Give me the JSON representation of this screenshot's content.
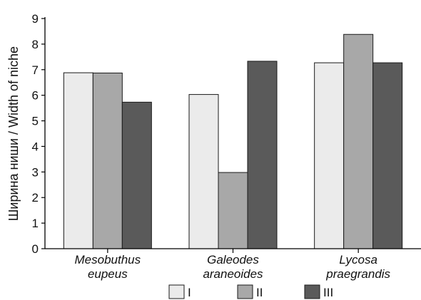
{
  "chart_data": {
    "type": "bar",
    "ylabel": "Ширина ниши / Width of niche",
    "ylim": [
      0,
      9
    ],
    "yticks": [
      0,
      1,
      2,
      3,
      4,
      5,
      6,
      7,
      8,
      9
    ],
    "categories": [
      [
        "Mesobuthus",
        "eupeus"
      ],
      [
        "Galeodes",
        "araneoides"
      ],
      [
        "Lycosa",
        "praegrandis"
      ]
    ],
    "series": [
      {
        "name": "I",
        "color": "#ebebeb",
        "values": [
          6.88,
          6.03,
          7.27
        ]
      },
      {
        "name": "II",
        "color": "#a8a8a8",
        "values": [
          6.87,
          2.98,
          8.38
        ]
      },
      {
        "name": "III",
        "color": "#5a5a5a",
        "values": [
          5.73,
          7.33,
          7.27
        ]
      }
    ],
    "grid": false,
    "legend_position": "bottom"
  }
}
